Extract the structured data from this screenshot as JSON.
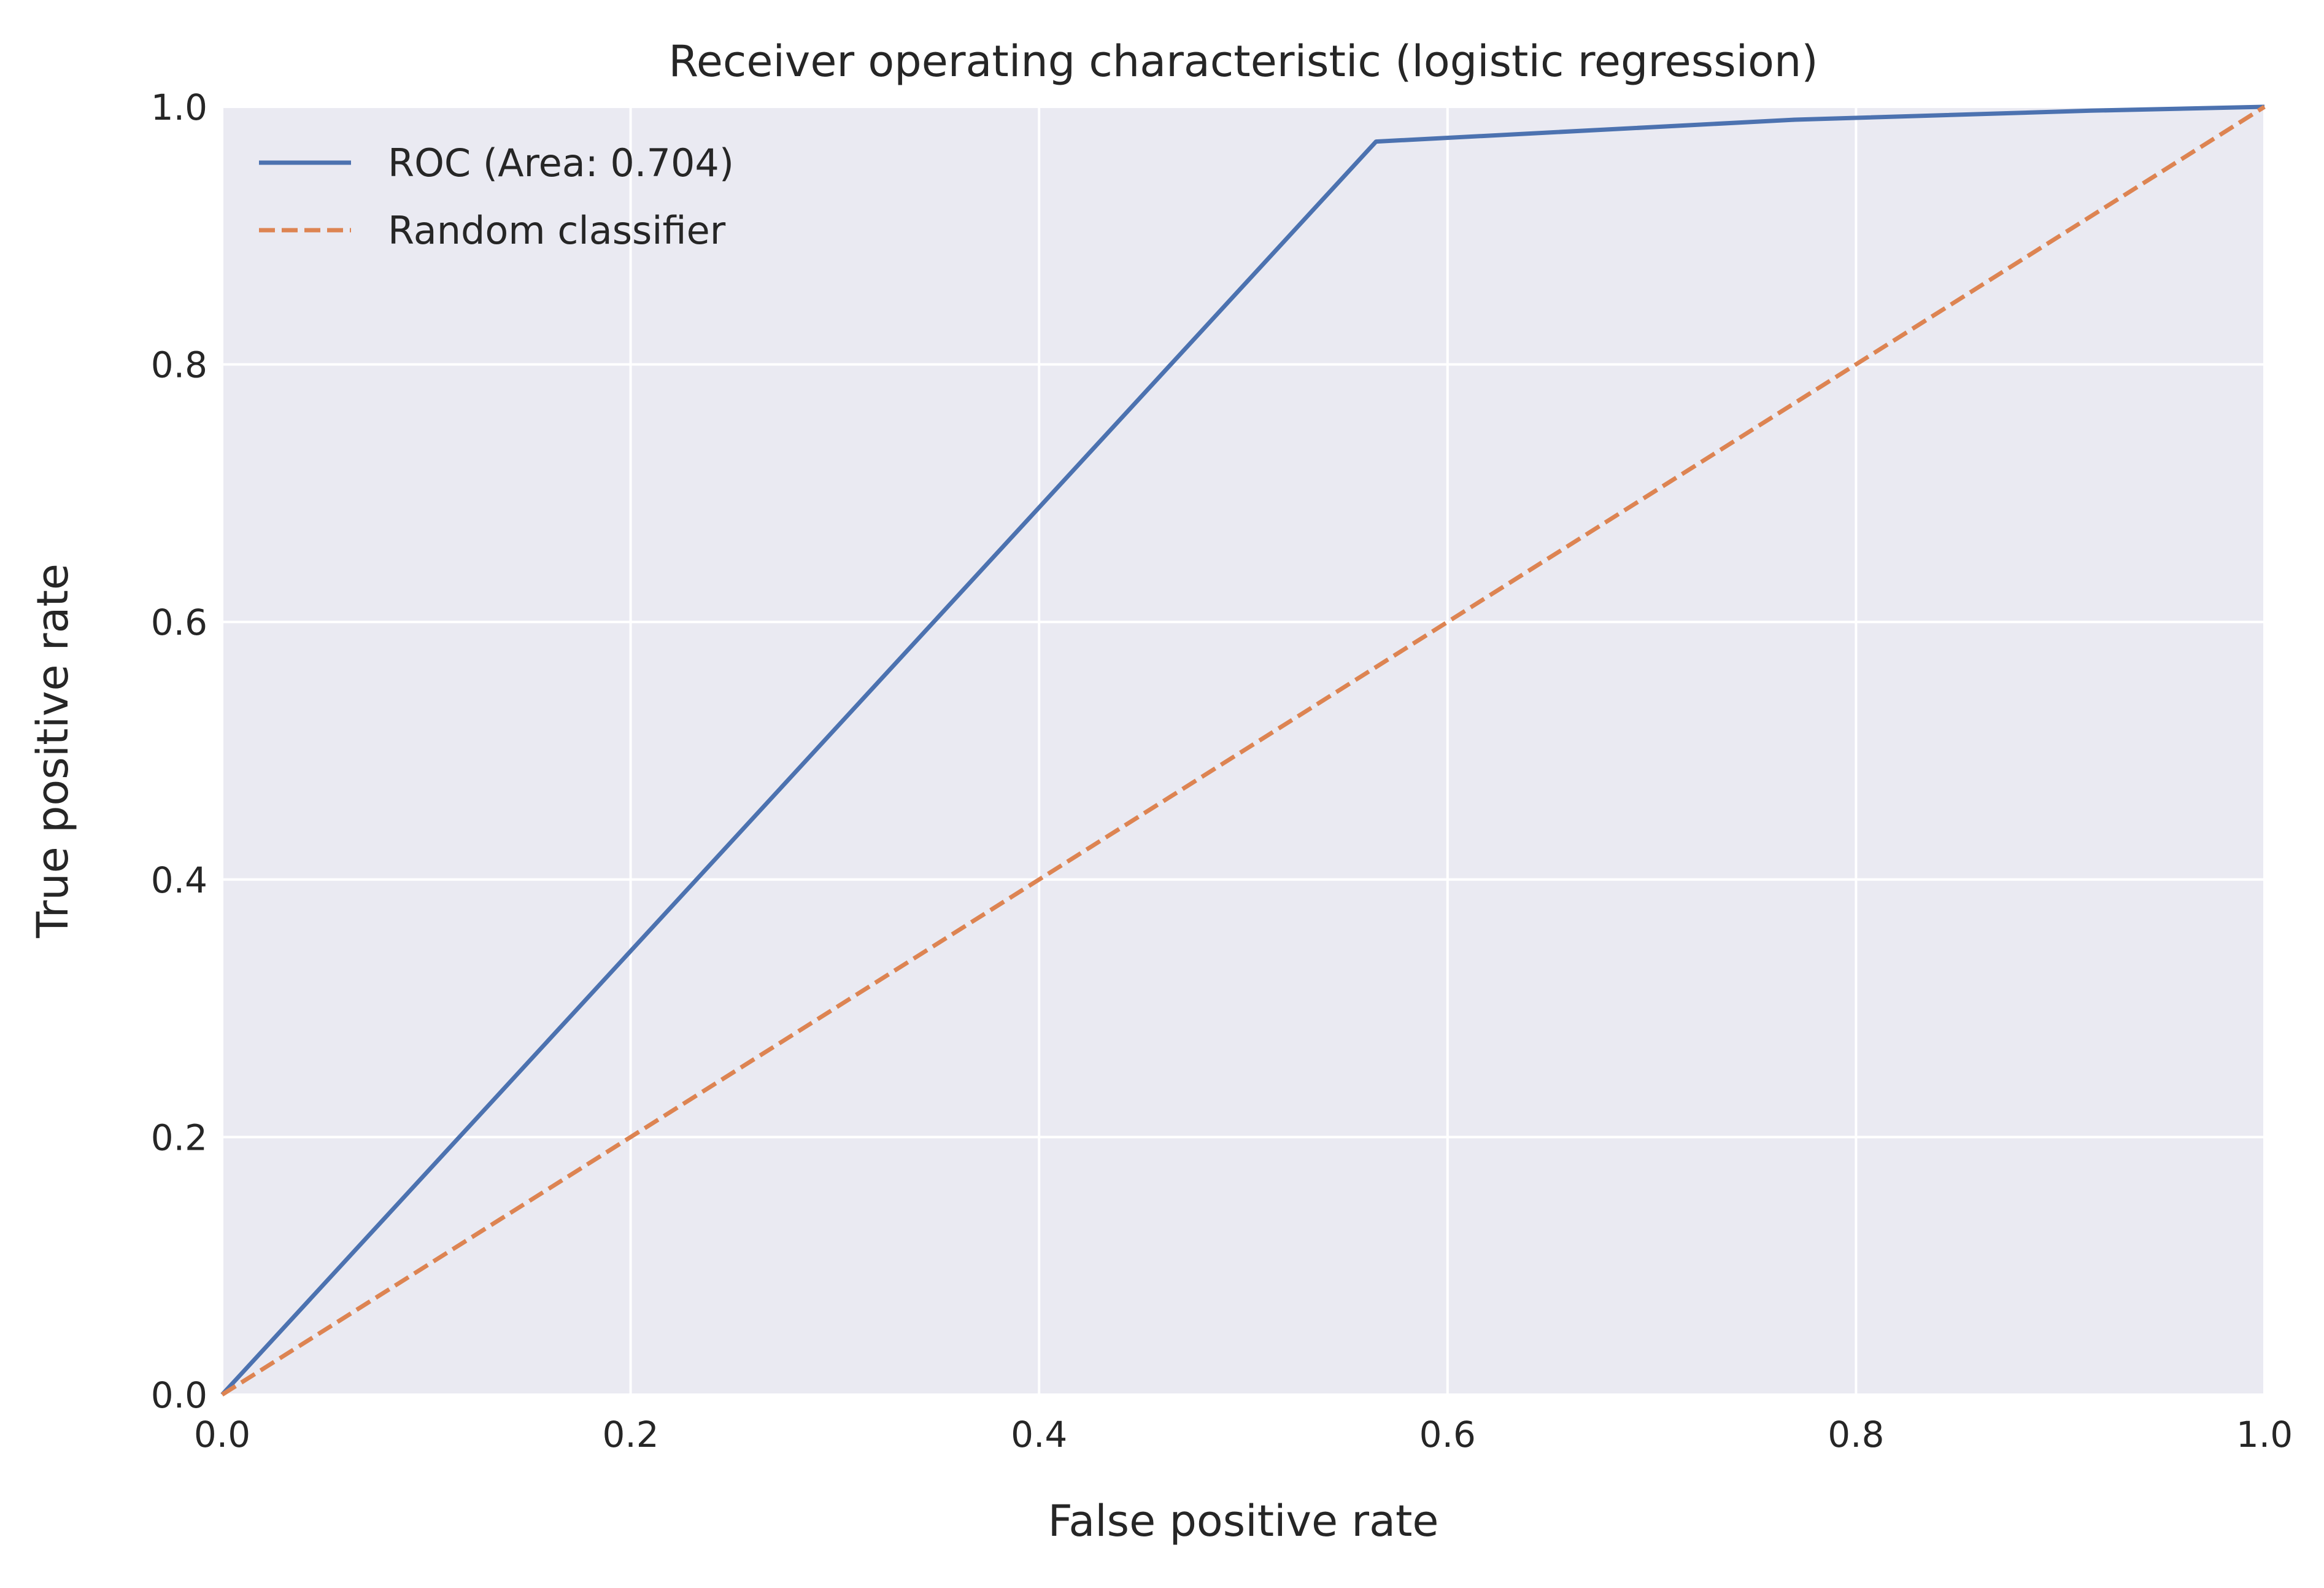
{
  "chart_data": {
    "type": "line",
    "title": "Receiver operating characteristic (logistic regression)",
    "xlabel": "False positive rate",
    "ylabel": "True positive rate",
    "xlim": [
      0.0,
      1.0
    ],
    "ylim": [
      0.0,
      1.0
    ],
    "xticks": [
      "0.0",
      "0.2",
      "0.4",
      "0.6",
      "0.8",
      "1.0"
    ],
    "yticks": [
      "0.0",
      "0.2",
      "0.4",
      "0.6",
      "0.8",
      "1.0"
    ],
    "grid": true,
    "legend_position": "top-left",
    "series": [
      {
        "name": "ROC (Area: 0.704)",
        "style": "solid",
        "color": "#4c72b0",
        "x": [
          0.0,
          0.565,
          0.77,
          0.915,
          1.0
        ],
        "y": [
          0.0,
          0.973,
          0.99,
          0.997,
          1.0
        ]
      },
      {
        "name": "Random classifier",
        "style": "dashed",
        "color": "#dd8452",
        "x": [
          0.0,
          1.0
        ],
        "y": [
          0.0,
          1.0
        ]
      }
    ],
    "colors": {
      "plot_background": "#eaeaf2",
      "grid": "#ffffff",
      "text": "#262626"
    }
  }
}
